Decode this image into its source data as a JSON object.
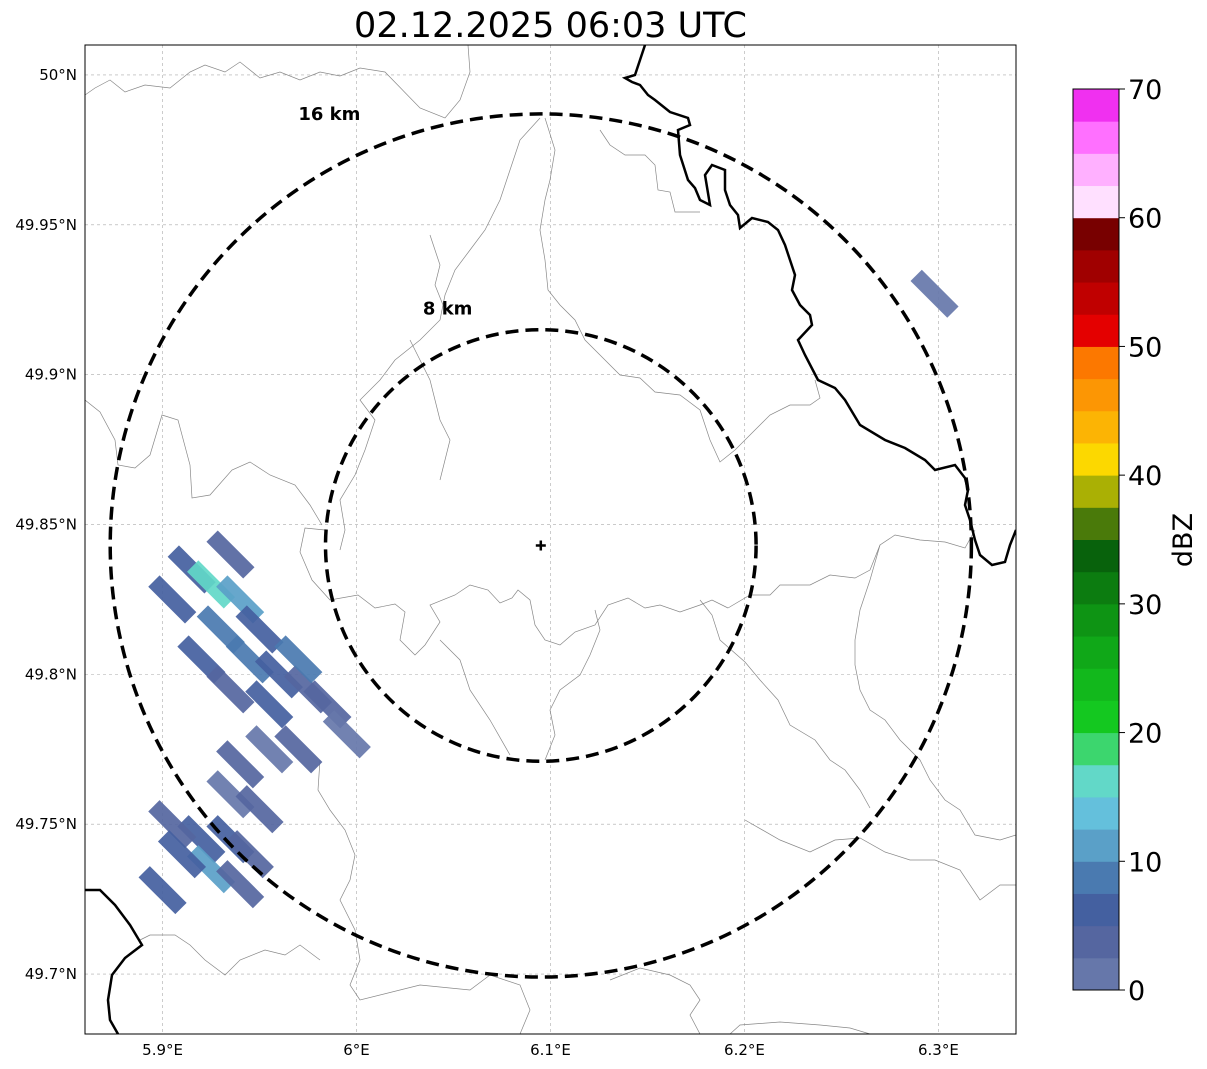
{
  "title": "02.12.2025 06:03 UTC",
  "map": {
    "lon_range": [
      5.86,
      6.34
    ],
    "lat_range": [
      49.68,
      50.01
    ],
    "x_ticks": [
      {
        "value": 5.9,
        "label": "5.9°E"
      },
      {
        "value": 6.0,
        "label": "6°E"
      },
      {
        "value": 6.1,
        "label": "6.1°E"
      },
      {
        "value": 6.2,
        "label": "6.2°E"
      },
      {
        "value": 6.3,
        "label": "6.3°E"
      }
    ],
    "y_ticks": [
      {
        "value": 49.7,
        "label": "49.7°N"
      },
      {
        "value": 49.75,
        "label": "49.75°N"
      },
      {
        "value": 49.8,
        "label": "49.8°N"
      },
      {
        "value": 49.85,
        "label": "49.85°N"
      },
      {
        "value": 49.9,
        "label": "49.9°N"
      },
      {
        "value": 49.95,
        "label": "49.95°N"
      },
      {
        "value": 50.0,
        "label": "50°N"
      }
    ],
    "gridlines": true,
    "radar_site": {
      "lon": 6.095,
      "lat": 49.843
    },
    "range_rings": [
      {
        "radius_km": 8,
        "label": "8 km",
        "lon_half_width": 0.111,
        "lat_half_height": 0.072,
        "label_at": {
          "lon": 6.047,
          "lat": 49.922
        }
      },
      {
        "radius_km": 16,
        "label": "16 km",
        "lon_half_width": 0.222,
        "lat_half_height": 0.144,
        "label_at": {
          "lon": 5.986,
          "lat": 49.987
        }
      }
    ]
  },
  "colorbar": {
    "label": "dBZ",
    "min": 0,
    "max": 70,
    "step": 2.5,
    "ticks": [
      "0",
      "10",
      "20",
      "30",
      "40",
      "50",
      "60",
      "70"
    ],
    "colors": [
      "#6677aa",
      "#5566a0",
      "#4460a0",
      "#4a7ab0",
      "#5aa0c8",
      "#64c0dc",
      "#62d8c8",
      "#3cd66e",
      "#14c820",
      "#12b81c",
      "#10a818",
      "#0e9414",
      "#0c7c10",
      "#08620c",
      "#4a7a0a",
      "#aab004",
      "#fcd800",
      "#fcb404",
      "#fc9604",
      "#fc7800",
      "#e40000",
      "#c00000",
      "#a00000",
      "#780000",
      "#ffe0ff",
      "#ffb0ff",
      "#ff70ff",
      "#f030f0"
    ]
  },
  "echoes": [
    {
      "lon": 5.905,
      "lat": 49.825,
      "dbz": 5
    },
    {
      "lon": 5.915,
      "lat": 49.835,
      "dbz": 6
    },
    {
      "lon": 5.925,
      "lat": 49.83,
      "dbz": 15
    },
    {
      "lon": 5.935,
      "lat": 49.84,
      "dbz": 4
    },
    {
      "lon": 5.94,
      "lat": 49.825,
      "dbz": 12
    },
    {
      "lon": 5.93,
      "lat": 49.815,
      "dbz": 8
    },
    {
      "lon": 5.95,
      "lat": 49.815,
      "dbz": 7
    },
    {
      "lon": 5.92,
      "lat": 49.805,
      "dbz": 6
    },
    {
      "lon": 5.945,
      "lat": 49.805,
      "dbz": 9
    },
    {
      "lon": 5.96,
      "lat": 49.8,
      "dbz": 5
    },
    {
      "lon": 5.975,
      "lat": 49.795,
      "dbz": 4
    },
    {
      "lon": 5.935,
      "lat": 49.795,
      "dbz": 3
    },
    {
      "lon": 5.955,
      "lat": 49.79,
      "dbz": 6
    },
    {
      "lon": 5.985,
      "lat": 49.79,
      "dbz": 3
    },
    {
      "lon": 5.995,
      "lat": 49.78,
      "dbz": 2
    },
    {
      "lon": 5.97,
      "lat": 49.805,
      "dbz": 8
    },
    {
      "lon": 5.94,
      "lat": 49.77,
      "dbz": 3
    },
    {
      "lon": 5.955,
      "lat": 49.775,
      "dbz": 2
    },
    {
      "lon": 5.97,
      "lat": 49.775,
      "dbz": 3
    },
    {
      "lon": 5.935,
      "lat": 49.76,
      "dbz": 2
    },
    {
      "lon": 5.95,
      "lat": 49.755,
      "dbz": 3
    },
    {
      "lon": 5.92,
      "lat": 49.745,
      "dbz": 5
    },
    {
      "lon": 5.935,
      "lat": 49.745,
      "dbz": 6
    },
    {
      "lon": 5.905,
      "lat": 49.75,
      "dbz": 3
    },
    {
      "lon": 5.925,
      "lat": 49.735,
      "dbz": 10
    },
    {
      "lon": 5.945,
      "lat": 49.74,
      "dbz": 4
    },
    {
      "lon": 5.91,
      "lat": 49.74,
      "dbz": 7
    },
    {
      "lon": 5.94,
      "lat": 49.73,
      "dbz": 3
    },
    {
      "lon": 5.9,
      "lat": 49.728,
      "dbz": 5
    },
    {
      "lon": 6.298,
      "lat": 49.927,
      "dbz": 2
    }
  ]
}
